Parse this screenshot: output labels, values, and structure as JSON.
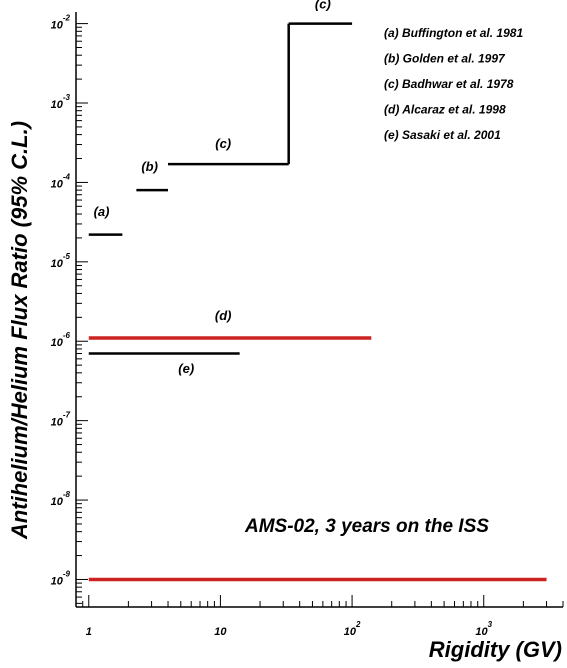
{
  "chart_data": {
    "type": "line",
    "ylabel": "Antihelium/Helium Flux Ratio (95% C.L.)",
    "xlabel": "Rigidity (GV)",
    "x_scale": "log",
    "y_scale": "log",
    "xlim": [
      0.8,
      4000
    ],
    "ylim": [
      4.5e-10,
      0.014
    ],
    "x_ticks": [
      {
        "value": 1,
        "label": "1"
      },
      {
        "value": 10,
        "label": "10"
      },
      {
        "value": 100,
        "base": "10",
        "exp": "2"
      },
      {
        "value": 1000,
        "base": "10",
        "exp": "3"
      }
    ],
    "y_ticks": [
      {
        "value": 1e-09,
        "base": "10",
        "exp": "-9"
      },
      {
        "value": 1e-08,
        "base": "10",
        "exp": "-8"
      },
      {
        "value": 1e-07,
        "base": "10",
        "exp": "-7"
      },
      {
        "value": 1e-06,
        "base": "10",
        "exp": "-6"
      },
      {
        "value": 1e-05,
        "base": "10",
        "exp": "-5"
      },
      {
        "value": 0.0001,
        "base": "10",
        "exp": "-4"
      },
      {
        "value": 0.001,
        "base": "10",
        "exp": "-3"
      },
      {
        "value": 0.01,
        "base": "10",
        "exp": "-2"
      }
    ],
    "series": [
      {
        "name": "(a) Buffington et al. 1981",
        "label": "(a)",
        "color": "#000000",
        "segments": [
          {
            "x": [
              1.0,
              1.8
            ],
            "y": 2.2e-05
          }
        ]
      },
      {
        "name": "(b) Golden et al. 1997",
        "label": "(b)",
        "color": "#000000",
        "segments": [
          {
            "x": [
              2.3,
              4.0
            ],
            "y": 8e-05
          }
        ]
      },
      {
        "name": "(c) Badhwar et al. 1978",
        "label": "(c)",
        "color": "#000000",
        "segments": [
          {
            "x": [
              4.0,
              33.0
            ],
            "y": 0.00017
          },
          {
            "x": [
              33.0,
              100.0
            ],
            "y": 0.01
          }
        ],
        "step_at": 33.0
      },
      {
        "name": "(d) Alcaraz et al. 1998",
        "label": "(d)",
        "color": "#cc2222",
        "segments": [
          {
            "x": [
              1.0,
              140.0
            ],
            "y": 1.1e-06
          }
        ]
      },
      {
        "name": "(e) Sasaki et al. 2001",
        "label": "(e)",
        "color": "#000000",
        "segments": [
          {
            "x": [
              1.0,
              14.0
            ],
            "y": 7e-07
          }
        ]
      },
      {
        "name": "AMS-02, 3 years on the ISS",
        "color": "#cc2222",
        "segments": [
          {
            "x": [
              1.0,
              3000.0
            ],
            "y": 1e-09
          }
        ]
      }
    ],
    "segment_labels": [
      {
        "text": "(a)",
        "x": 1.25,
        "y": 3.8e-05
      },
      {
        "text": "(b)",
        "x": 2.9,
        "y": 0.00014
      },
      {
        "text": "(c)",
        "x": 10.5,
        "y": 0.00027
      },
      {
        "text": "(c)",
        "x": 60.0,
        "y": 0.0155
      },
      {
        "text": "(d)",
        "x": 10.5,
        "y": 1.85e-06
      },
      {
        "text": "(e)",
        "x": 5.5,
        "y": 4e-07
      }
    ],
    "legend": {
      "placement": "top-right",
      "entries": [
        "(a) Buffington et al. 1981",
        "(b) Golden et al. 1997",
        "(c) Badhwar et al. 1978",
        "(d) Alcaraz et al. 1998",
        "(e) Sasaki et al. 2001"
      ]
    },
    "annotation": "AMS-02, 3 years on the ISS",
    "grid": false
  }
}
